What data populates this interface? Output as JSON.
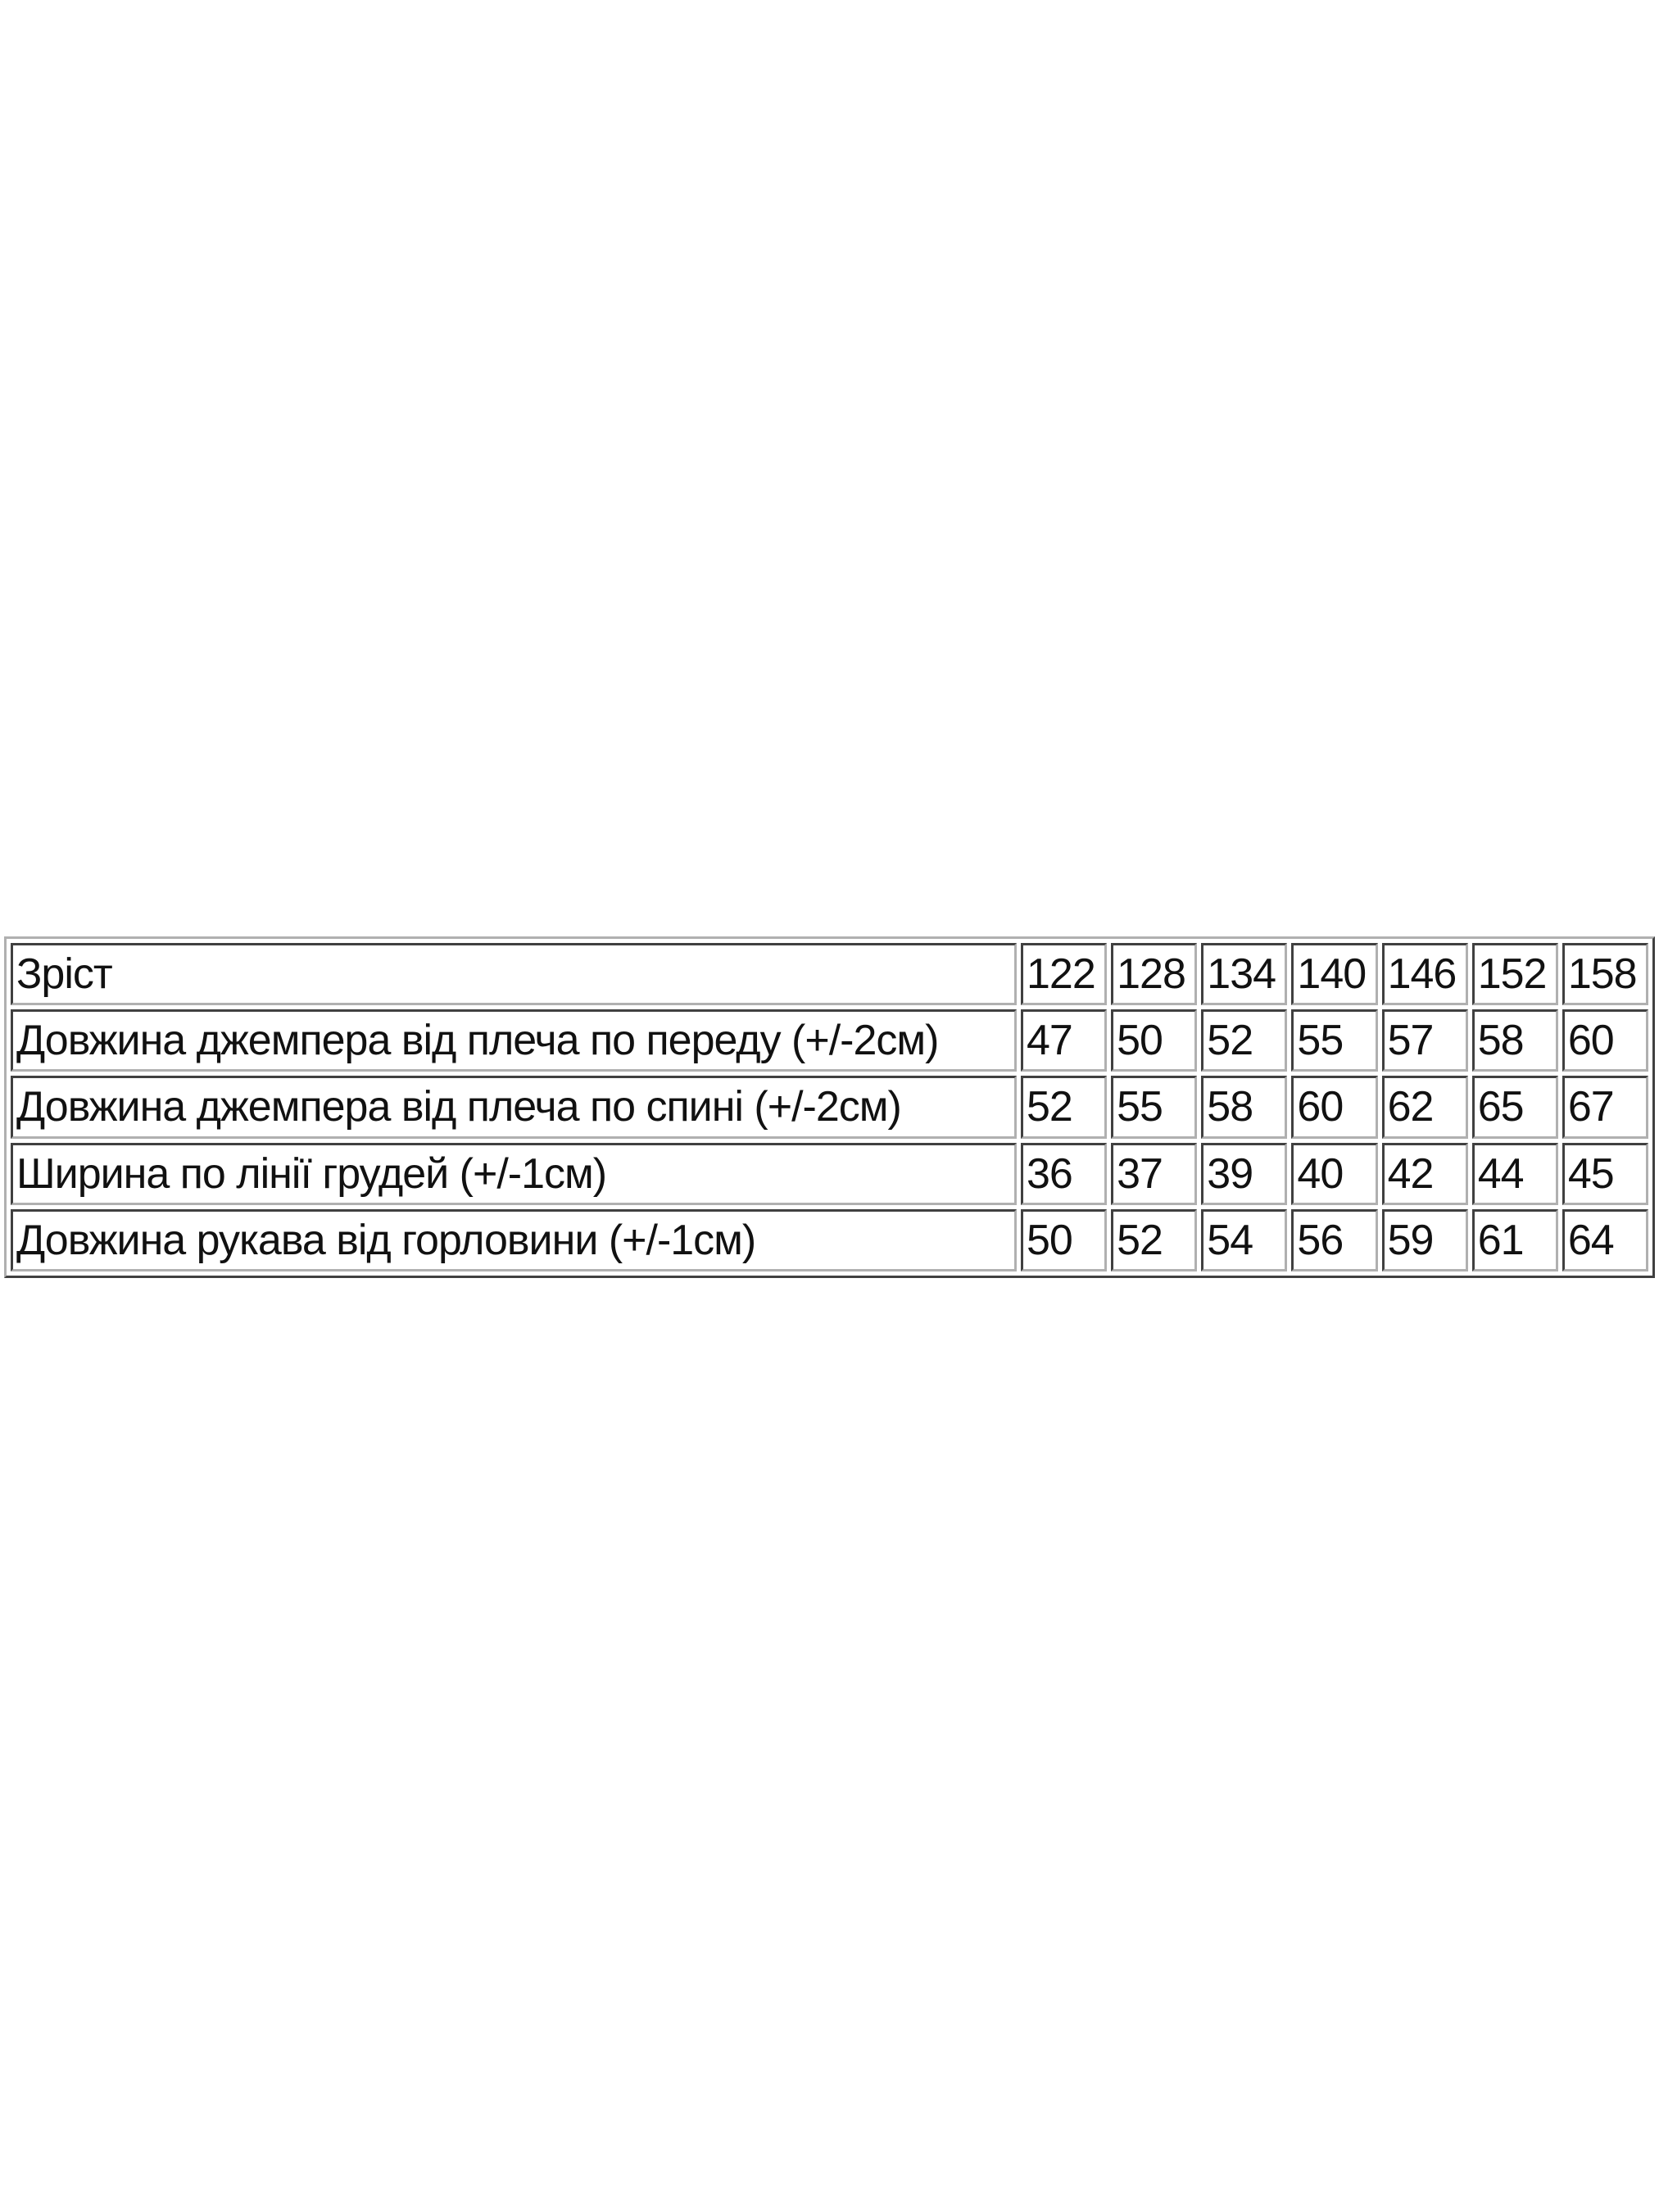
{
  "table": {
    "header": {
      "label": "Зріст",
      "values": [
        "122",
        "128",
        "134",
        "140",
        "146",
        "152",
        "158"
      ]
    },
    "rows": [
      {
        "label": "Довжина джемпера від плеча по переду (+/-2см)",
        "values": [
          "47",
          "50",
          "52",
          "55",
          "57",
          "58",
          "60"
        ]
      },
      {
        "label": "Довжина джемпера від плеча по спині  (+/-2см)",
        "values": [
          "52",
          "55",
          "58",
          "60",
          "62",
          "65",
          "67"
        ]
      },
      {
        "label": "Ширина по лінії грудей (+/-1см)",
        "values": [
          "36",
          "37",
          "39",
          "40",
          "42",
          "44",
          "45"
        ]
      },
      {
        "label": "Довжина рукава від горловини (+/-1см)",
        "values": [
          "50",
          "52",
          "54",
          "56",
          "59",
          "61",
          "64"
        ]
      }
    ]
  }
}
